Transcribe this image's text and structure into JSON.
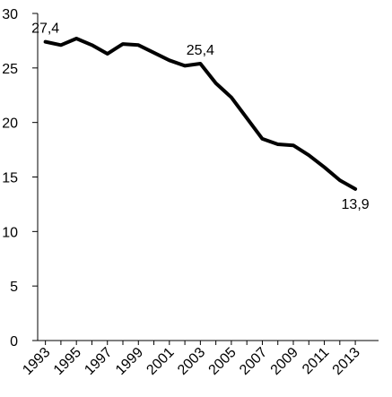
{
  "chart_data": {
    "type": "line",
    "title": "",
    "xlabel": "",
    "ylabel": "",
    "ylim": [
      0,
      30
    ],
    "yticks": [
      0,
      5,
      10,
      15,
      20,
      25,
      30
    ],
    "xticks": [
      "1993",
      "1995",
      "1997",
      "1999",
      "2001",
      "2003",
      "2005",
      "2007",
      "2009",
      "2011",
      "2013"
    ],
    "grid": false,
    "legend": "none",
    "series": [
      {
        "color": "#000000",
        "x": [
          1993,
          1994,
          1995,
          1996,
          1997,
          1998,
          1999,
          2000,
          2001,
          2002,
          2003,
          2004,
          2005,
          2006,
          2007,
          2008,
          2009,
          2010,
          2011,
          2012,
          2013
        ],
        "values": [
          27.4,
          27.1,
          27.7,
          27.1,
          26.3,
          27.2,
          27.1,
          26.4,
          25.7,
          25.2,
          25.4,
          23.6,
          22.3,
          20.4,
          18.5,
          18.0,
          17.9,
          17.0,
          15.9,
          14.7,
          13.9
        ]
      }
    ],
    "annotations": [
      {
        "x": 1993,
        "y": 27.4,
        "text": "27,4",
        "pos": "above"
      },
      {
        "x": 2003,
        "y": 25.4,
        "text": "25,4",
        "pos": "above"
      },
      {
        "x": 2013,
        "y": 13.9,
        "text": "13,9",
        "pos": "below"
      }
    ]
  }
}
